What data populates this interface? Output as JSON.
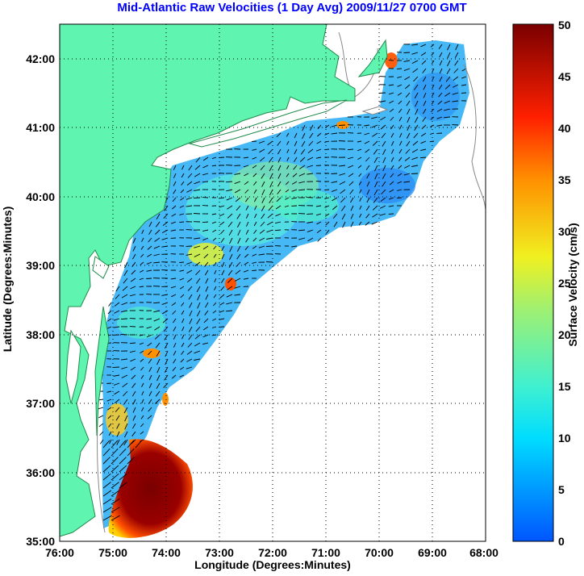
{
  "title": "Mid-Atlantic Raw Velocities (1 Day Avg) 2009/11/27 0700 GMT",
  "x_axis": {
    "label": "Longitude (Degrees:Minutes)",
    "ticks": [
      "76:00",
      "75:00",
      "74:00",
      "73:00",
      "72:00",
      "71:00",
      "70:00",
      "69:00",
      "68:00"
    ]
  },
  "y_axis": {
    "label": "Latitude (Degrees:Minutes)",
    "ticks": [
      "35:00",
      "36:00",
      "37:00",
      "38:00",
      "39:00",
      "40:00",
      "41:00",
      "42:00"
    ]
  },
  "colorbar": {
    "label": "Surface Velocity (cm/s)",
    "ticks": [
      "0",
      "5",
      "10",
      "15",
      "20",
      "25",
      "30",
      "35",
      "40",
      "45",
      "50"
    ],
    "range": [
      0,
      50
    ]
  },
  "map": {
    "extent": {
      "lon_west": -76,
      "lon_east": -68,
      "lat_south": 35,
      "lat_north": 42.5
    },
    "grid": "dotted",
    "land_color": "#5ff5b0",
    "coast_color": "#1f8a4a"
  }
}
